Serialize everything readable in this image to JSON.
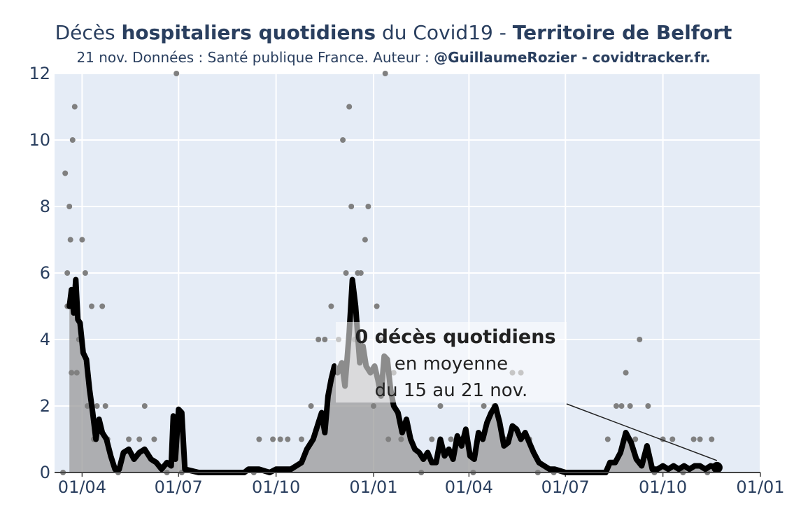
{
  "header": {
    "title_prefix": "Décès ",
    "title_bold1": "hospitaliers quotidiens",
    "title_mid": " du Covid19 - ",
    "title_bold2": "Territoire de Belfort",
    "subtitle_text": "21 nov. Données : Santé publique France. Auteur : ",
    "subtitle_bold": "@GuillaumeRozier - covidtracker.fr."
  },
  "chart_data": {
    "type": "line",
    "x_unit": "date (dd/mm/yyyy)",
    "y_unit": "décès quotidiens",
    "ylim": [
      0,
      12
    ],
    "xlim": [
      "06/03/2020",
      "01/01/2022"
    ],
    "x_tick_labels": [
      "01/04",
      "01/07",
      "01/10",
      "01/01",
      "01/04",
      "01/07",
      "01/10",
      "01/01"
    ],
    "y_tick_labels": [
      "0",
      "2",
      "4",
      "6",
      "8",
      "10",
      "12"
    ],
    "grid": true,
    "legend": "none",
    "colors": {
      "background": "#e5ecf6",
      "grid": "#ffffff",
      "line": "#000000",
      "points": "#808080",
      "area": "#999999",
      "axis_text": "#2a3f5f"
    },
    "series": [
      {
        "style": "line",
        "points": [
          [
            "20/03/2020",
            5.0
          ],
          [
            "22/03/2020",
            5.5
          ],
          [
            "24/03/2020",
            4.8
          ],
          [
            "26/03/2020",
            5.8
          ],
          [
            "28/03/2020",
            4.6
          ],
          [
            "30/03/2020",
            4.5
          ],
          [
            "02/04/2020",
            3.6
          ],
          [
            "05/04/2020",
            3.4
          ],
          [
            "08/04/2020",
            2.5
          ],
          [
            "11/04/2020",
            1.8
          ],
          [
            "14/04/2020",
            1.0
          ],
          [
            "17/04/2020",
            1.6
          ],
          [
            "20/04/2020",
            1.2
          ],
          [
            "24/04/2020",
            1.0
          ],
          [
            "28/04/2020",
            0.5
          ],
          [
            "02/05/2020",
            0.1
          ],
          [
            "06/05/2020",
            0.1
          ],
          [
            "10/05/2020",
            0.6
          ],
          [
            "15/05/2020",
            0.7
          ],
          [
            "20/05/2020",
            0.4
          ],
          [
            "25/05/2020",
            0.6
          ],
          [
            "30/05/2020",
            0.7
          ],
          [
            "05/06/2020",
            0.4
          ],
          [
            "10/06/2020",
            0.3
          ],
          [
            "15/06/2020",
            0.1
          ],
          [
            "20/06/2020",
            0.3
          ],
          [
            "24/06/2020",
            0.2
          ],
          [
            "26/06/2020",
            1.7
          ],
          [
            "28/06/2020",
            0.4
          ],
          [
            "01/07/2020",
            1.9
          ],
          [
            "04/07/2020",
            1.8
          ],
          [
            "07/07/2020",
            0.1
          ],
          [
            "20/07/2020",
            0.0
          ],
          [
            "10/08/2020",
            0.0
          ],
          [
            "01/09/2020",
            0.0
          ],
          [
            "05/09/2020",
            0.1
          ],
          [
            "15/09/2020",
            0.1
          ],
          [
            "25/09/2020",
            0.0
          ],
          [
            "01/10/2020",
            0.1
          ],
          [
            "15/10/2020",
            0.1
          ],
          [
            "25/10/2020",
            0.3
          ],
          [
            "30/10/2020",
            0.7
          ],
          [
            "05/11/2020",
            1.0
          ],
          [
            "10/11/2020",
            1.5
          ],
          [
            "13/11/2020",
            1.8
          ],
          [
            "16/11/2020",
            1.2
          ],
          [
            "19/11/2020",
            2.3
          ],
          [
            "22/11/2020",
            2.8
          ],
          [
            "25/11/2020",
            3.2
          ],
          [
            "28/11/2020",
            3.0
          ],
          [
            "02/12/2020",
            3.3
          ],
          [
            "05/12/2020",
            2.6
          ],
          [
            "09/12/2020",
            4.2
          ],
          [
            "12/12/2020",
            5.8
          ],
          [
            "15/12/2020",
            5.0
          ],
          [
            "19/12/2020",
            3.3
          ],
          [
            "22/12/2020",
            3.8
          ],
          [
            "25/12/2020",
            3.2
          ],
          [
            "29/12/2020",
            3.0
          ],
          [
            "02/01/2021",
            3.2
          ],
          [
            "05/01/2021",
            2.8
          ],
          [
            "08/01/2021",
            2.3
          ],
          [
            "11/01/2021",
            3.5
          ],
          [
            "14/01/2021",
            3.4
          ],
          [
            "17/01/2021",
            2.5
          ],
          [
            "20/01/2021",
            2.0
          ],
          [
            "24/01/2021",
            1.8
          ],
          [
            "28/01/2021",
            1.2
          ],
          [
            "01/02/2021",
            1.6
          ],
          [
            "05/02/2021",
            1.0
          ],
          [
            "09/02/2021",
            0.7
          ],
          [
            "13/02/2021",
            0.6
          ],
          [
            "17/02/2021",
            0.4
          ],
          [
            "21/02/2021",
            0.6
          ],
          [
            "25/02/2021",
            0.3
          ],
          [
            "01/03/2021",
            0.3
          ],
          [
            "05/03/2021",
            1.0
          ],
          [
            "09/03/2021",
            0.5
          ],
          [
            "13/03/2021",
            0.7
          ],
          [
            "17/03/2021",
            0.4
          ],
          [
            "21/03/2021",
            1.1
          ],
          [
            "25/03/2021",
            0.8
          ],
          [
            "29/03/2021",
            1.3
          ],
          [
            "02/04/2021",
            0.5
          ],
          [
            "06/04/2021",
            0.4
          ],
          [
            "10/04/2021",
            1.2
          ],
          [
            "14/04/2021",
            1.0
          ],
          [
            "18/04/2021",
            1.5
          ],
          [
            "22/04/2021",
            1.8
          ],
          [
            "26/04/2021",
            2.0
          ],
          [
            "30/04/2021",
            1.5
          ],
          [
            "04/05/2021",
            0.8
          ],
          [
            "08/05/2021",
            0.9
          ],
          [
            "12/05/2021",
            1.4
          ],
          [
            "16/05/2021",
            1.3
          ],
          [
            "20/05/2021",
            1.0
          ],
          [
            "24/05/2021",
            1.2
          ],
          [
            "28/05/2021",
            0.9
          ],
          [
            "01/06/2021",
            0.6
          ],
          [
            "06/06/2021",
            0.3
          ],
          [
            "11/06/2021",
            0.2
          ],
          [
            "16/06/2021",
            0.1
          ],
          [
            "21/06/2021",
            0.1
          ],
          [
            "01/07/2021",
            0.0
          ],
          [
            "20/07/2021",
            0.0
          ],
          [
            "08/08/2021",
            0.0
          ],
          [
            "12/08/2021",
            0.3
          ],
          [
            "17/08/2021",
            0.3
          ],
          [
            "22/08/2021",
            0.6
          ],
          [
            "27/08/2021",
            1.2
          ],
          [
            "01/09/2021",
            0.9
          ],
          [
            "06/09/2021",
            0.4
          ],
          [
            "11/09/2021",
            0.2
          ],
          [
            "16/09/2021",
            0.8
          ],
          [
            "21/09/2021",
            0.1
          ],
          [
            "26/09/2021",
            0.1
          ],
          [
            "01/10/2021",
            0.2
          ],
          [
            "06/10/2021",
            0.1
          ],
          [
            "11/10/2021",
            0.2
          ],
          [
            "16/10/2021",
            0.1
          ],
          [
            "21/10/2021",
            0.2
          ],
          [
            "26/10/2021",
            0.1
          ],
          [
            "31/10/2021",
            0.2
          ],
          [
            "05/11/2021",
            0.2
          ],
          [
            "10/11/2021",
            0.1
          ],
          [
            "15/11/2021",
            0.2
          ],
          [
            "21/11/2021",
            0.15
          ]
        ]
      },
      {
        "style": "scatter",
        "points": [
          [
            "14/03/2020",
            0
          ],
          [
            "16/03/2020",
            9
          ],
          [
            "18/03/2020",
            6
          ],
          [
            "20/03/2020",
            8
          ],
          [
            "21/03/2020",
            7
          ],
          [
            "23/03/2020",
            10
          ],
          [
            "25/03/2020",
            11
          ],
          [
            "18/03/2020",
            5
          ],
          [
            "22/03/2020",
            3
          ],
          [
            "27/03/2020",
            3
          ],
          [
            "29/03/2020",
            4
          ],
          [
            "01/04/2020",
            7
          ],
          [
            "04/04/2020",
            6
          ],
          [
            "06/04/2020",
            2
          ],
          [
            "10/04/2020",
            5
          ],
          [
            "12/04/2020",
            1
          ],
          [
            "15/04/2020",
            2
          ],
          [
            "20/04/2020",
            5
          ],
          [
            "23/04/2020",
            2
          ],
          [
            "25/04/2020",
            1
          ],
          [
            "05/05/2020",
            0
          ],
          [
            "15/05/2020",
            1
          ],
          [
            "25/05/2020",
            1
          ],
          [
            "30/05/2020",
            2
          ],
          [
            "08/06/2020",
            1
          ],
          [
            "20/06/2020",
            0
          ],
          [
            "26/06/2020",
            1
          ],
          [
            "29/06/2020",
            12
          ],
          [
            "04/07/2020",
            0
          ],
          [
            "20/08/2020",
            0
          ],
          [
            "10/09/2020",
            0
          ],
          [
            "15/09/2020",
            1
          ],
          [
            "28/09/2020",
            1
          ],
          [
            "05/10/2020",
            1
          ],
          [
            "12/10/2020",
            1
          ],
          [
            "25/10/2020",
            1
          ],
          [
            "03/11/2020",
            2
          ],
          [
            "10/11/2020",
            4
          ],
          [
            "16/11/2020",
            4
          ],
          [
            "22/11/2020",
            5
          ],
          [
            "29/11/2020",
            4
          ],
          [
            "03/12/2020",
            10
          ],
          [
            "06/12/2020",
            6
          ],
          [
            "09/12/2020",
            11
          ],
          [
            "11/12/2020",
            8
          ],
          [
            "14/12/2020",
            4
          ],
          [
            "17/12/2020",
            6
          ],
          [
            "20/12/2020",
            6
          ],
          [
            "24/12/2020",
            7
          ],
          [
            "27/12/2020",
            8
          ],
          [
            "01/01/2021",
            2
          ],
          [
            "04/01/2021",
            5
          ],
          [
            "08/01/2021",
            4
          ],
          [
            "12/01/2021",
            12
          ],
          [
            "15/01/2021",
            1
          ],
          [
            "20/01/2021",
            3
          ],
          [
            "27/01/2021",
            1
          ],
          [
            "05/02/2021",
            1
          ],
          [
            "15/02/2021",
            0
          ],
          [
            "25/02/2021",
            1
          ],
          [
            "05/03/2021",
            2
          ],
          [
            "15/03/2021",
            1
          ],
          [
            "25/03/2021",
            1
          ],
          [
            "05/04/2021",
            0
          ],
          [
            "15/04/2021",
            2
          ],
          [
            "25/04/2021",
            2
          ],
          [
            "05/05/2021",
            1
          ],
          [
            "12/05/2021",
            3
          ],
          [
            "20/05/2021",
            3
          ],
          [
            "28/05/2021",
            1
          ],
          [
            "05/06/2021",
            0
          ],
          [
            "20/06/2021",
            0
          ],
          [
            "15/07/2021",
            0
          ],
          [
            "01/08/2021",
            0
          ],
          [
            "10/08/2021",
            1
          ],
          [
            "18/08/2021",
            2
          ],
          [
            "23/08/2021",
            2
          ],
          [
            "27/08/2021",
            3
          ],
          [
            "31/08/2021",
            2
          ],
          [
            "05/09/2021",
            1
          ],
          [
            "09/09/2021",
            4
          ],
          [
            "17/09/2021",
            2
          ],
          [
            "23/09/2021",
            0
          ],
          [
            "01/10/2021",
            1
          ],
          [
            "10/10/2021",
            1
          ],
          [
            "20/10/2021",
            0
          ],
          [
            "30/10/2021",
            1
          ],
          [
            "05/11/2021",
            1
          ],
          [
            "12/11/2021",
            0
          ],
          [
            "16/11/2021",
            1
          ]
        ]
      }
    ],
    "annotation": {
      "line1": "0 décès quotidiens",
      "line2": "en moyenne",
      "line3": "du 15 au 21 nov.",
      "points_to": [
        "21/11/2021",
        0.15
      ]
    }
  }
}
